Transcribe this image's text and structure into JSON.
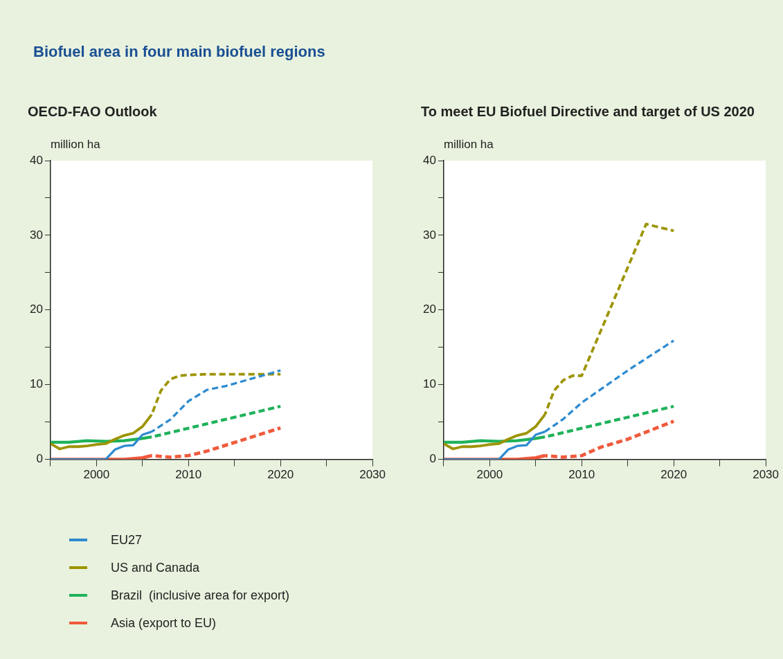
{
  "chart_data": [
    {
      "type": "line",
      "title": "Biofuel area in four main biofuel regions",
      "subtitle": "OECD-FAO Outlook",
      "ylabel": "million ha",
      "xlim": [
        1995,
        2030
      ],
      "xticks": [
        {
          "value": 1995,
          "label": null
        },
        2000,
        {
          "value": 2005,
          "label": null
        },
        2010,
        {
          "value": 2015,
          "label": null
        },
        2020,
        {
          "value": 2025,
          "label": null
        },
        2030
      ],
      "ylim": [
        0,
        40
      ],
      "yticks": [
        0,
        {
          "value": 5,
          "label": null
        },
        10,
        {
          "value": 15,
          "label": null
        },
        20,
        {
          "value": 25,
          "label": null
        },
        30,
        {
          "value": 35,
          "label": null
        },
        40
      ],
      "grid": false,
      "legend": "bottom",
      "series": [
        {
          "name": "EU27",
          "color": "#2e8bd0",
          "x": [
            1995,
            2001,
            2002,
            2003,
            2004,
            2005,
            2006
          ],
          "values": [
            0,
            0,
            1.3,
            1.8,
            1.9,
            3.3,
            3.7
          ]
        },
        {
          "name": "US and Canada",
          "color": "#9c9400",
          "x": [
            1995,
            1996,
            1997,
            1998,
            1999,
            2000,
            2001,
            2002,
            2003,
            2004,
            2005,
            2006
          ],
          "values": [
            2.1,
            1.4,
            1.7,
            1.7,
            1.8,
            2.0,
            2.1,
            2.7,
            3.2,
            3.5,
            4.4,
            6.0
          ]
        },
        {
          "name": "Brazil  (inclusive area for export)",
          "color": "#1fb25a",
          "x": [
            1995,
            1997,
            1999,
            2001,
            2003,
            2005,
            2006
          ],
          "values": [
            2.3,
            2.3,
            2.5,
            2.4,
            2.5,
            2.8,
            3.0
          ]
        },
        {
          "name": "Asia (export to EU)",
          "color": "#f05a3c",
          "x": [
            1995,
            2003,
            2005,
            2006
          ],
          "values": [
            0,
            0,
            0.2,
            0.5
          ]
        },
        {
          "color": "#2e8bd0",
          "line_style": "dashed",
          "x": [
            2006,
            2008,
            2010,
            2012,
            2014,
            2020
          ],
          "values": [
            3.7,
            5.3,
            7.8,
            9.3,
            9.8,
            11.9
          ]
        },
        {
          "color": "#9c9400",
          "line_style": "dashed",
          "x": [
            2006,
            2007,
            2008,
            2009,
            2010,
            2012,
            2015,
            2020
          ],
          "values": [
            6.0,
            9.2,
            10.7,
            11.2,
            11.3,
            11.4,
            11.4,
            11.4
          ]
        },
        {
          "color": "#1fb25a",
          "line_style": "dashed",
          "x": [
            2006,
            2020
          ],
          "values": [
            3.0,
            7.1
          ]
        },
        {
          "color": "#f05a3c",
          "line_style": "dashed",
          "x": [
            2006,
            2007,
            2008,
            2010,
            2012,
            2020
          ],
          "values": [
            0.5,
            0.4,
            0.3,
            0.5,
            1.1,
            4.2
          ]
        }
      ]
    },
    {
      "type": "line",
      "subtitle": "To meet EU Biofuel Directive and target of US 2020",
      "ylabel": "million ha",
      "xlim": [
        1995,
        2030
      ],
      "xticks": [
        {
          "value": 1995,
          "label": null
        },
        2000,
        {
          "value": 2005,
          "label": null
        },
        2010,
        {
          "value": 2015,
          "label": null
        },
        2020,
        {
          "value": 2025,
          "label": null
        },
        2030
      ],
      "ylim": [
        0,
        40
      ],
      "yticks": [
        0,
        {
          "value": 5,
          "label": null
        },
        10,
        {
          "value": 15,
          "label": null
        },
        20,
        {
          "value": 25,
          "label": null
        },
        30,
        {
          "value": 35,
          "label": null
        },
        40
      ],
      "grid": false,
      "series": [
        {
          "color": "#2e8bd0",
          "x": [
            1995,
            2001,
            2002,
            2003,
            2004,
            2005,
            2006
          ],
          "values": [
            0,
            0,
            1.3,
            1.8,
            1.9,
            3.3,
            3.7
          ]
        },
        {
          "color": "#9c9400",
          "x": [
            1995,
            1996,
            1997,
            1998,
            1999,
            2000,
            2001,
            2002,
            2003,
            2004,
            2005,
            2006
          ],
          "values": [
            2.1,
            1.4,
            1.7,
            1.7,
            1.8,
            2.0,
            2.1,
            2.7,
            3.2,
            3.5,
            4.4,
            6.0
          ]
        },
        {
          "color": "#1fb25a",
          "x": [
            1995,
            1997,
            1999,
            2001,
            2003,
            2005,
            2006
          ],
          "values": [
            2.3,
            2.3,
            2.5,
            2.4,
            2.5,
            2.8,
            3.0
          ]
        },
        {
          "color": "#f05a3c",
          "x": [
            1995,
            2003,
            2005,
            2006
          ],
          "values": [
            0,
            0,
            0.2,
            0.5
          ]
        },
        {
          "color": "#2e8bd0",
          "line_style": "dashed",
          "x": [
            2006,
            2008,
            2010,
            2015,
            2020
          ],
          "values": [
            3.7,
            5.4,
            7.6,
            11.9,
            15.9
          ]
        },
        {
          "color": "#9c9400",
          "line_style": "dashed",
          "x": [
            2006,
            2007,
            2008,
            2009,
            2010,
            2017,
            2020
          ],
          "values": [
            6.0,
            9.2,
            10.6,
            11.2,
            11.2,
            31.5,
            30.6
          ]
        },
        {
          "color": "#1fb25a",
          "line_style": "dashed",
          "x": [
            2006,
            2020
          ],
          "values": [
            3.0,
            7.1
          ]
        },
        {
          "color": "#f05a3c",
          "line_style": "dashed",
          "x": [
            2006,
            2007,
            2008,
            2010,
            2012,
            2015,
            2020
          ],
          "values": [
            0.5,
            0.4,
            0.3,
            0.5,
            1.6,
            2.7,
            5.1
          ]
        }
      ]
    }
  ]
}
